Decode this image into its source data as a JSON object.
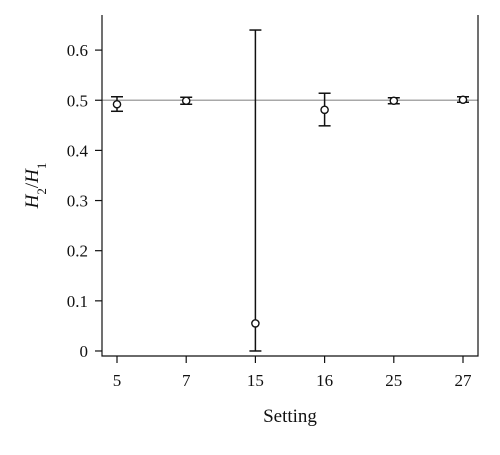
{
  "chart_data": {
    "type": "scatter",
    "title": "",
    "xlabel": "Setting",
    "ylabel_parts": {
      "h2": "H",
      "h2_sub": "2",
      "slash": "/",
      "h1": "H",
      "h1_sub": "1"
    },
    "categories": [
      "5",
      "7",
      "15",
      "16",
      "25",
      "27"
    ],
    "values": [
      0.492,
      0.499,
      0.055,
      0.481,
      0.499,
      0.501
    ],
    "error_low": [
      0.478,
      0.492,
      0.0,
      0.449,
      0.493,
      0.496
    ],
    "error_high": [
      0.507,
      0.506,
      0.64,
      0.514,
      0.505,
      0.507
    ],
    "reference_line": 0.5,
    "ylim": [
      -0.01,
      0.67
    ],
    "yticks": [
      0,
      0.1,
      0.2,
      0.3,
      0.4,
      0.5,
      0.6
    ],
    "ytick_labels": [
      "0",
      "0.1",
      "0.2",
      "0.3",
      "0.4",
      "0.5",
      "0.6"
    ],
    "grid": false,
    "marker": "open-circle"
  }
}
